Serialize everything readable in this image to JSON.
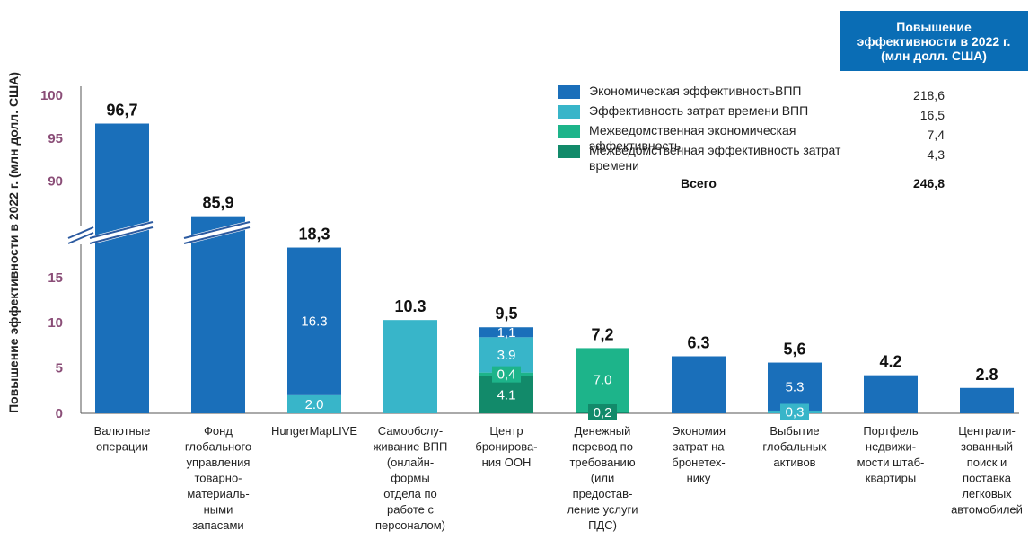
{
  "chart_data": {
    "type": "bar",
    "ylabel": "Повышение эффективности в 2022 г. (млн долл. США)",
    "y_ticks_lower": [
      "0",
      "5",
      "10",
      "15"
    ],
    "y_ticks_upper": [
      "90",
      "95",
      "100"
    ],
    "axis_break": true,
    "categories": [
      [
        "Валютные",
        "операции"
      ],
      [
        "Фонд",
        "глобального",
        "управления",
        "товарно-",
        "материаль-",
        "ными",
        "запасами"
      ],
      [
        "HungerMapLIVE"
      ],
      [
        "Самообслу-",
        "живание ВПП",
        "(онлайн-",
        "формы",
        "отдела по",
        "работе с",
        "персоналом)"
      ],
      [
        "Центр",
        "бронирова-",
        "ния ООН"
      ],
      [
        "Денежный",
        "перевод по",
        "требованию",
        "(или",
        "предостав-",
        "ление услуги",
        "ПДС)"
      ],
      [
        "Экономия",
        "затрат на",
        "бронетех-",
        "нику"
      ],
      [
        "Выбытие",
        "глобальных",
        "активов"
      ],
      [
        "Портфель",
        "недвижи-",
        "мости штаб-",
        "квартиры"
      ],
      [
        "Централи-",
        "зованный",
        "поиск и",
        "поставка",
        "легковых",
        "автомобилей"
      ]
    ],
    "totals": [
      "96,7",
      "85,9",
      "18,3",
      "10.3",
      "9,5",
      "7,2",
      "6.3",
      "5,6",
      "4.2",
      "2.8"
    ],
    "total_values": [
      96.7,
      85.9,
      18.3,
      10.3,
      9.5,
      7.2,
      6.3,
      5.6,
      4.2,
      2.8
    ],
    "series": [
      {
        "name": "Экономическая эффективностьВПП",
        "color": "#1a6fba",
        "values": [
          96.7,
          85.9,
          16.3,
          0,
          1.1,
          0,
          6.3,
          5.3,
          4.2,
          2.8
        ],
        "labels": [
          "",
          "",
          "16.3",
          "",
          "1,1",
          "",
          "",
          "5.3",
          "",
          ""
        ]
      },
      {
        "name": "Эффективность затрат времени ВПП",
        "color": "#38b5c9",
        "values": [
          0,
          0,
          2.0,
          10.3,
          3.9,
          0,
          0,
          0.3,
          0,
          0
        ],
        "labels": [
          "",
          "",
          "2.0",
          "",
          "3.9",
          "",
          "",
          "0,3",
          "",
          ""
        ]
      },
      {
        "name": "Межведомственная экономическая эффективность",
        "color": "#1db48a",
        "values": [
          0,
          0,
          0,
          0,
          0.4,
          7.0,
          0,
          0,
          0,
          0
        ],
        "labels": [
          "",
          "",
          "",
          "",
          "0,4",
          "7.0",
          "",
          "",
          "",
          ""
        ]
      },
      {
        "name": "Межведомственная эффективность затрат времени",
        "color": "#128a6a",
        "values": [
          0,
          0,
          0,
          0,
          4.1,
          0.2,
          0,
          0,
          0,
          0
        ],
        "labels": [
          "",
          "",
          "",
          "",
          "4.1",
          "0,2",
          "",
          "",
          "",
          ""
        ]
      }
    ],
    "legend": {
      "title": "Повышение эффективности в 2022 г. (млн долл. США)",
      "items": [
        {
          "label": "Экономическая эффективностьВПП",
          "value": "218,6",
          "color": "#1a6fba"
        },
        {
          "label": "Эффективность затрат времени ВПП",
          "value": "16,5",
          "color": "#38b5c9"
        },
        {
          "label": "Межведомственная экономическая эффективность",
          "value": "7,4",
          "color": "#1db48a"
        },
        {
          "label": "Межведомственная эффективность затрат времени",
          "value": "4,3",
          "color": "#128a6a"
        }
      ],
      "total_label": "Всего",
      "total_value": "246,8"
    },
    "legend_position": "top-right",
    "grid": false
  }
}
